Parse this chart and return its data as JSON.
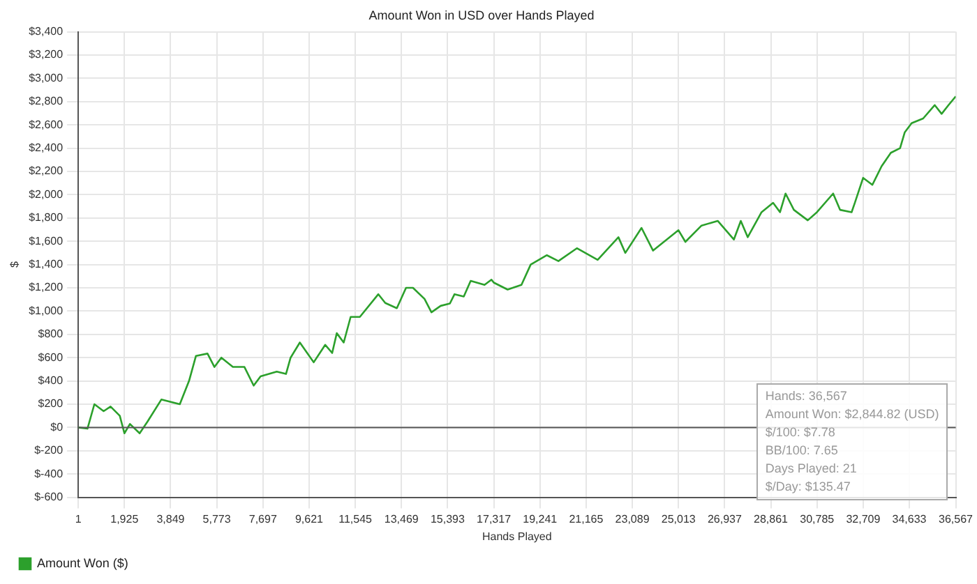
{
  "chart_data": {
    "type": "line",
    "title": "Amount Won in USD over Hands Played",
    "xlabel": "Hands Played",
    "ylabel": "$",
    "x": [
      1,
      385,
      673,
      1058,
      1347,
      1732,
      1924,
      2155,
      2559,
      2886,
      3463,
      4233,
      4618,
      4906,
      5387,
      5676,
      5964,
      6445,
      6926,
      7311,
      7600,
      8273,
      8658,
      8850,
      9235,
      9812,
      10293,
      10582,
      10774,
      11063,
      11352,
      11736,
      12506,
      12795,
      13276,
      13660,
      13949,
      14430,
      14719,
      15103,
      15488,
      15681,
      16066,
      16354,
      16931,
      17220,
      17316,
      17893,
      18470,
      18855,
      19529,
      20010,
      20779,
      21645,
      22511,
      22799,
      23473,
      23954,
      25012,
      25301,
      25974,
      26648,
      27321,
      27610,
      27898,
      28475,
      28956,
      29245,
      29476,
      29822,
      30400,
      30784,
      31458,
      31746,
      32227,
      32362,
      32708,
      33093,
      33478,
      33862,
      34247,
      34440,
      34728,
      35209,
      35690,
      35979,
      36267,
      36567
    ],
    "series": [
      {
        "name": "Amount Won ($)",
        "color": "#2ca02c",
        "values": [
          0,
          -10,
          200,
          140,
          180,
          100,
          -50,
          30,
          -50,
          50,
          240,
          200,
          400,
          615,
          635,
          520,
          600,
          520,
          520,
          360,
          440,
          480,
          460,
          600,
          730,
          560,
          710,
          640,
          810,
          730,
          950,
          950,
          1145,
          1070,
          1025,
          1200,
          1200,
          1105,
          990,
          1045,
          1065,
          1145,
          1125,
          1260,
          1225,
          1270,
          1245,
          1185,
          1225,
          1400,
          1480,
          1430,
          1540,
          1440,
          1635,
          1500,
          1715,
          1520,
          1695,
          1595,
          1735,
          1775,
          1615,
          1775,
          1635,
          1850,
          1930,
          1850,
          2010,
          1870,
          1780,
          1850,
          2010,
          1870,
          1850,
          1930,
          2145,
          2085,
          2245,
          2360,
          2400,
          2535,
          2615,
          2655,
          2770,
          2695,
          2770,
          2845
        ]
      }
    ],
    "xlim": [
      1,
      36567
    ],
    "xticks": [
      1,
      {
        "value": 1925,
        "label": "1,925"
      },
      {
        "value": 3849,
        "label": "3,849"
      },
      {
        "value": 5773,
        "label": "5,773"
      },
      {
        "value": 7697,
        "label": "7,697"
      },
      {
        "value": 9621,
        "label": "9,621"
      },
      {
        "value": 11545,
        "label": "11,545"
      },
      {
        "value": 13469,
        "label": "13,469"
      },
      {
        "value": 15393,
        "label": "15,393"
      },
      {
        "value": 17317,
        "label": "17,317"
      },
      {
        "value": 19241,
        "label": "19,241"
      },
      {
        "value": 21165,
        "label": "21,165"
      },
      {
        "value": 23089,
        "label": "23,089"
      },
      {
        "value": 25013,
        "label": "25,013"
      },
      {
        "value": 26937,
        "label": "26,937"
      },
      {
        "value": 28861,
        "label": "28,861"
      },
      {
        "value": 30785,
        "label": "30,785"
      },
      {
        "value": 32709,
        "label": "32,709"
      },
      {
        "value": 34633,
        "label": "34,633"
      },
      {
        "value": 36567,
        "label": "36,567"
      }
    ],
    "ylim": [
      -600,
      3400
    ],
    "yticks": [
      {
        "value": -600,
        "label": "$-600"
      },
      {
        "value": -400,
        "label": "$-400"
      },
      {
        "value": -200,
        "label": "$-200"
      },
      {
        "value": 0,
        "label": "$0"
      },
      {
        "value": 200,
        "label": "$200"
      },
      {
        "value": 400,
        "label": "$400"
      },
      {
        "value": 600,
        "label": "$600"
      },
      {
        "value": 800,
        "label": "$800"
      },
      {
        "value": 1000,
        "label": "$1,000"
      },
      {
        "value": 1200,
        "label": "$1,200"
      },
      {
        "value": 1400,
        "label": "$1,400"
      },
      {
        "value": 1600,
        "label": "$1,600"
      },
      {
        "value": 1800,
        "label": "$1,800"
      },
      {
        "value": 2000,
        "label": "$2,000"
      },
      {
        "value": 2200,
        "label": "$2,200"
      },
      {
        "value": 2400,
        "label": "$2,400"
      },
      {
        "value": 2600,
        "label": "$2,600"
      },
      {
        "value": 2800,
        "label": "$2,800"
      },
      {
        "value": 3000,
        "label": "$3,000"
      },
      {
        "value": 3200,
        "label": "$3,200"
      },
      {
        "value": 3400,
        "label": "$3,400"
      }
    ],
    "ref_lines": [
      {
        "axis": "y",
        "value": 0,
        "color": "#555555"
      }
    ],
    "grid": true,
    "legend": "bottom left",
    "marker": "none",
    "line_style": "solid",
    "annotations": [
      "Hands: 36,567",
      "Amount Won: $2,844.82 (USD)",
      "$/100: $7.78",
      "BB/100: 7.65",
      "Days Played: 21",
      "$/Day: $135.47"
    ]
  }
}
